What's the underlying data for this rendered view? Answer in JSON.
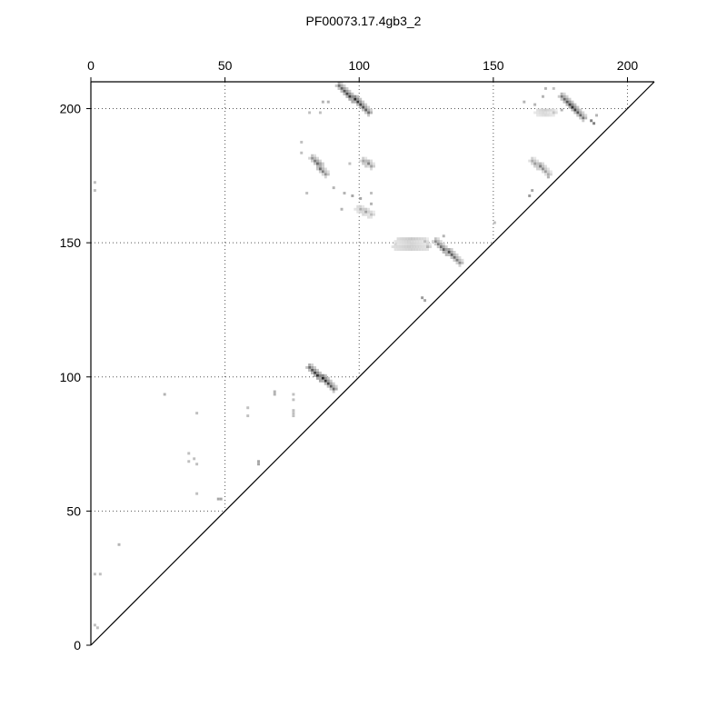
{
  "chart_data": {
    "type": "heatmap",
    "title": "PF00073.17.4gb3_2",
    "xlabel": "",
    "ylabel": "",
    "xlim": [
      0,
      210
    ],
    "ylim": [
      0,
      210
    ],
    "x_ticks": [
      0,
      50,
      100,
      150,
      200
    ],
    "y_ticks": [
      0,
      50,
      100,
      150,
      200
    ],
    "x_axis_position": "top",
    "grid": true,
    "diagonal": true,
    "color_low": "#ffffff",
    "color_high": "#000000",
    "segments": [
      {
        "x0": 92,
        "y0": 208,
        "x1": 103,
        "y1": 198,
        "intensity": 0.85
      },
      {
        "x0": 175,
        "y0": 204,
        "x1": 183,
        "y1": 196,
        "intensity": 0.8
      },
      {
        "x0": 81,
        "y0": 103,
        "x1": 90,
        "y1": 95,
        "intensity": 0.9
      },
      {
        "x0": 128,
        "y0": 150,
        "x1": 137,
        "y1": 142,
        "intensity": 0.7
      },
      {
        "x0": 82,
        "y0": 181,
        "x1": 87,
        "y1": 175,
        "intensity": 0.65
      },
      {
        "x0": 164,
        "y0": 180,
        "x1": 170,
        "y1": 175,
        "intensity": 0.5
      },
      {
        "x0": 113,
        "y0": 148,
        "x1": 125,
        "y1": 148,
        "intensity": 0.45
      },
      {
        "x0": 114,
        "y0": 150,
        "x1": 124,
        "y1": 150,
        "intensity": 0.4
      },
      {
        "x0": 101,
        "y0": 180,
        "x1": 104,
        "y1": 178,
        "intensity": 0.55
      },
      {
        "x0": 99,
        "y0": 162,
        "x1": 104,
        "y1": 160,
        "intensity": 0.4
      },
      {
        "x0": 166,
        "y0": 198,
        "x1": 172,
        "y1": 198,
        "intensity": 0.35
      }
    ],
    "points": [
      {
        "x": 1,
        "y": 7,
        "v": 0.25
      },
      {
        "x": 2,
        "y": 6,
        "v": 0.25
      },
      {
        "x": 1,
        "y": 26,
        "v": 0.25
      },
      {
        "x": 3,
        "y": 26,
        "v": 0.25
      },
      {
        "x": 10,
        "y": 37,
        "v": 0.3
      },
      {
        "x": 1,
        "y": 172,
        "v": 0.25
      },
      {
        "x": 1,
        "y": 169,
        "v": 0.25
      },
      {
        "x": 27,
        "y": 93,
        "v": 0.3
      },
      {
        "x": 36,
        "y": 71,
        "v": 0.25
      },
      {
        "x": 38,
        "y": 69,
        "v": 0.25
      },
      {
        "x": 36,
        "y": 68,
        "v": 0.25
      },
      {
        "x": 39,
        "y": 67,
        "v": 0.25
      },
      {
        "x": 39,
        "y": 86,
        "v": 0.25
      },
      {
        "x": 39,
        "y": 56,
        "v": 0.25
      },
      {
        "x": 47,
        "y": 54,
        "v": 0.35
      },
      {
        "x": 48,
        "y": 54,
        "v": 0.35
      },
      {
        "x": 58,
        "y": 88,
        "v": 0.25
      },
      {
        "x": 58,
        "y": 85,
        "v": 0.25
      },
      {
        "x": 62,
        "y": 68,
        "v": 0.35
      },
      {
        "x": 62,
        "y": 67,
        "v": 0.35
      },
      {
        "x": 68,
        "y": 94,
        "v": 0.3
      },
      {
        "x": 68,
        "y": 93,
        "v": 0.3
      },
      {
        "x": 75,
        "y": 93,
        "v": 0.25
      },
      {
        "x": 75,
        "y": 91,
        "v": 0.25
      },
      {
        "x": 75,
        "y": 87,
        "v": 0.25
      },
      {
        "x": 75,
        "y": 86,
        "v": 0.25
      },
      {
        "x": 75,
        "y": 85,
        "v": 0.25
      },
      {
        "x": 78,
        "y": 187,
        "v": 0.25
      },
      {
        "x": 78,
        "y": 183,
        "v": 0.25
      },
      {
        "x": 80,
        "y": 168,
        "v": 0.25
      },
      {
        "x": 81,
        "y": 198,
        "v": 0.25
      },
      {
        "x": 85,
        "y": 198,
        "v": 0.25
      },
      {
        "x": 86,
        "y": 202,
        "v": 0.3
      },
      {
        "x": 88,
        "y": 202,
        "v": 0.3
      },
      {
        "x": 90,
        "y": 170,
        "v": 0.3
      },
      {
        "x": 94,
        "y": 168,
        "v": 0.3
      },
      {
        "x": 97,
        "y": 167,
        "v": 0.35
      },
      {
        "x": 96,
        "y": 179,
        "v": 0.25
      },
      {
        "x": 100,
        "y": 166,
        "v": 0.35
      },
      {
        "x": 104,
        "y": 168,
        "v": 0.25
      },
      {
        "x": 104,
        "y": 164,
        "v": 0.3
      },
      {
        "x": 93,
        "y": 162,
        "v": 0.3
      },
      {
        "x": 123,
        "y": 129,
        "v": 0.4
      },
      {
        "x": 124,
        "y": 128,
        "v": 0.35
      },
      {
        "x": 131,
        "y": 152,
        "v": 0.3
      },
      {
        "x": 150,
        "y": 157,
        "v": 0.25
      },
      {
        "x": 161,
        "y": 202,
        "v": 0.3
      },
      {
        "x": 165,
        "y": 201,
        "v": 0.3
      },
      {
        "x": 168,
        "y": 204,
        "v": 0.3
      },
      {
        "x": 169,
        "y": 207,
        "v": 0.3
      },
      {
        "x": 172,
        "y": 207,
        "v": 0.25
      },
      {
        "x": 175,
        "y": 199,
        "v": 0.3
      },
      {
        "x": 164,
        "y": 169,
        "v": 0.35
      },
      {
        "x": 163,
        "y": 167,
        "v": 0.4
      },
      {
        "x": 170,
        "y": 174,
        "v": 0.3
      },
      {
        "x": 186,
        "y": 195,
        "v": 0.5
      },
      {
        "x": 187,
        "y": 194,
        "v": 0.5
      },
      {
        "x": 188,
        "y": 197,
        "v": 0.3
      }
    ]
  }
}
